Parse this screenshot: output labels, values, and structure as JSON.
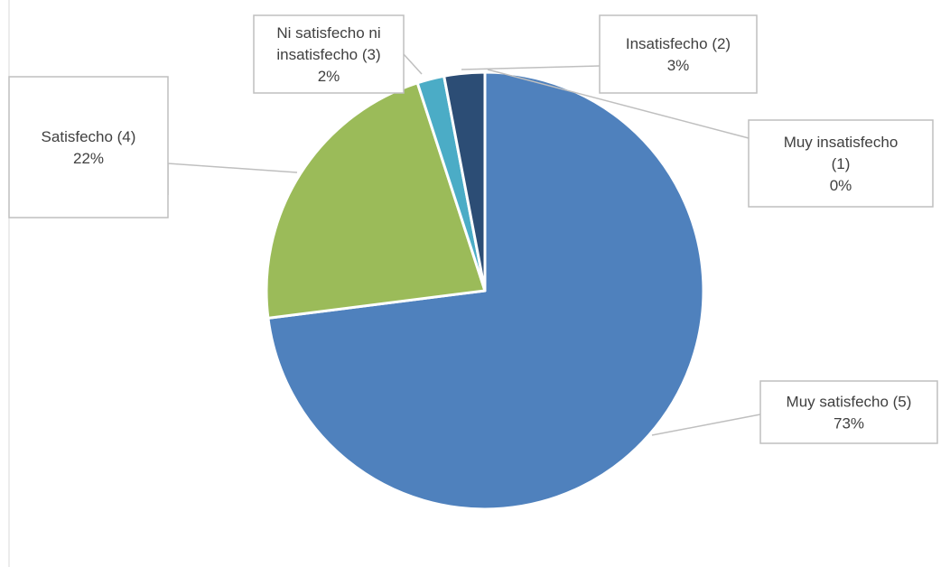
{
  "chart_data": {
    "type": "pie",
    "title": "",
    "categories": [
      "Muy satisfecho (5)",
      "Satisfecho (4)",
      "Ni satisfecho ni insatisfecho (3)",
      "Insatisfecho (2)",
      "Muy insatisfecho (1)"
    ],
    "values": [
      73,
      22,
      2,
      3,
      0
    ],
    "value_labels": [
      "73%",
      "22%",
      "2%",
      "3%",
      "0%"
    ],
    "label_lines": [
      [
        "Muy satisfecho (5)",
        "73%"
      ],
      [
        "Satisfecho (4)",
        "22%"
      ],
      [
        "Ni satisfecho ni",
        "insatisfecho (3)",
        "2%"
      ],
      [
        "Insatisfecho (2)",
        "3%"
      ],
      [
        "Muy insatisfecho",
        "(1)",
        "0%"
      ]
    ],
    "colors": [
      "#4f81bd",
      "#9bbb59",
      "#4bacc6",
      "#2c4d75",
      "#4f81bd"
    ],
    "legend": "none",
    "data_label_position": "callout"
  }
}
